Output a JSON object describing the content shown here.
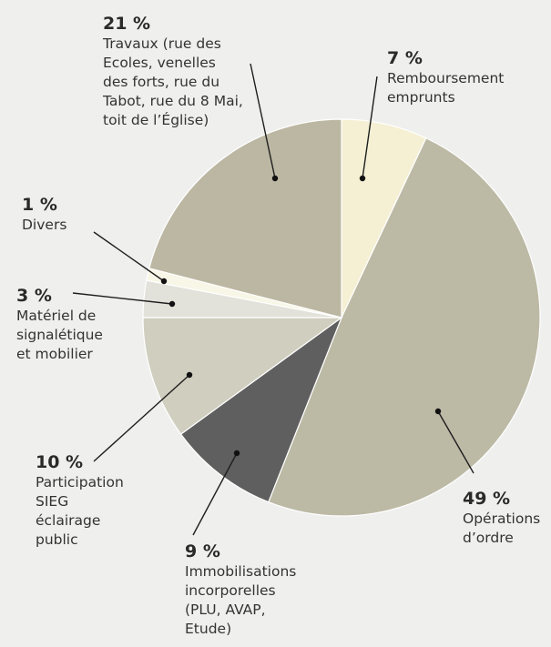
{
  "chart_data": {
    "type": "pie",
    "start_angle_deg": 0,
    "direction": "clockwise",
    "slices": [
      {
        "pct_label": "7 %",
        "value": 7,
        "label": "Remboursement\nemprunts",
        "color": "#f5f0d4"
      },
      {
        "pct_label": "49 %",
        "value": 49,
        "label": "Opérations\nd’ordre",
        "color": "#bcb9a5"
      },
      {
        "pct_label": "9 %",
        "value": 9,
        "label": "Immobilisations\nincorporelles\n(PLU, AVAP,\nEtude)",
        "color": "#5f5f5f"
      },
      {
        "pct_label": "10 %",
        "value": 10,
        "label": "Participation\nSIEG\néclairage\npublic",
        "color": "#d0cebf"
      },
      {
        "pct_label": "3 %",
        "value": 3,
        "label": "Matériel de\nsignalétique\net mobilier",
        "color": "#e2e1da"
      },
      {
        "pct_label": "1 %",
        "value": 1,
        "label": "Divers",
        "color": "#f8f6e6"
      },
      {
        "pct_label": "21 %",
        "value": 21,
        "label": "Travaux (rue des\nEcoles, venelles\ndes forts, rue du\nTabot, rue du 8 Mai,\ntoit de l’Église)",
        "color": "#bcb7a2"
      }
    ]
  }
}
